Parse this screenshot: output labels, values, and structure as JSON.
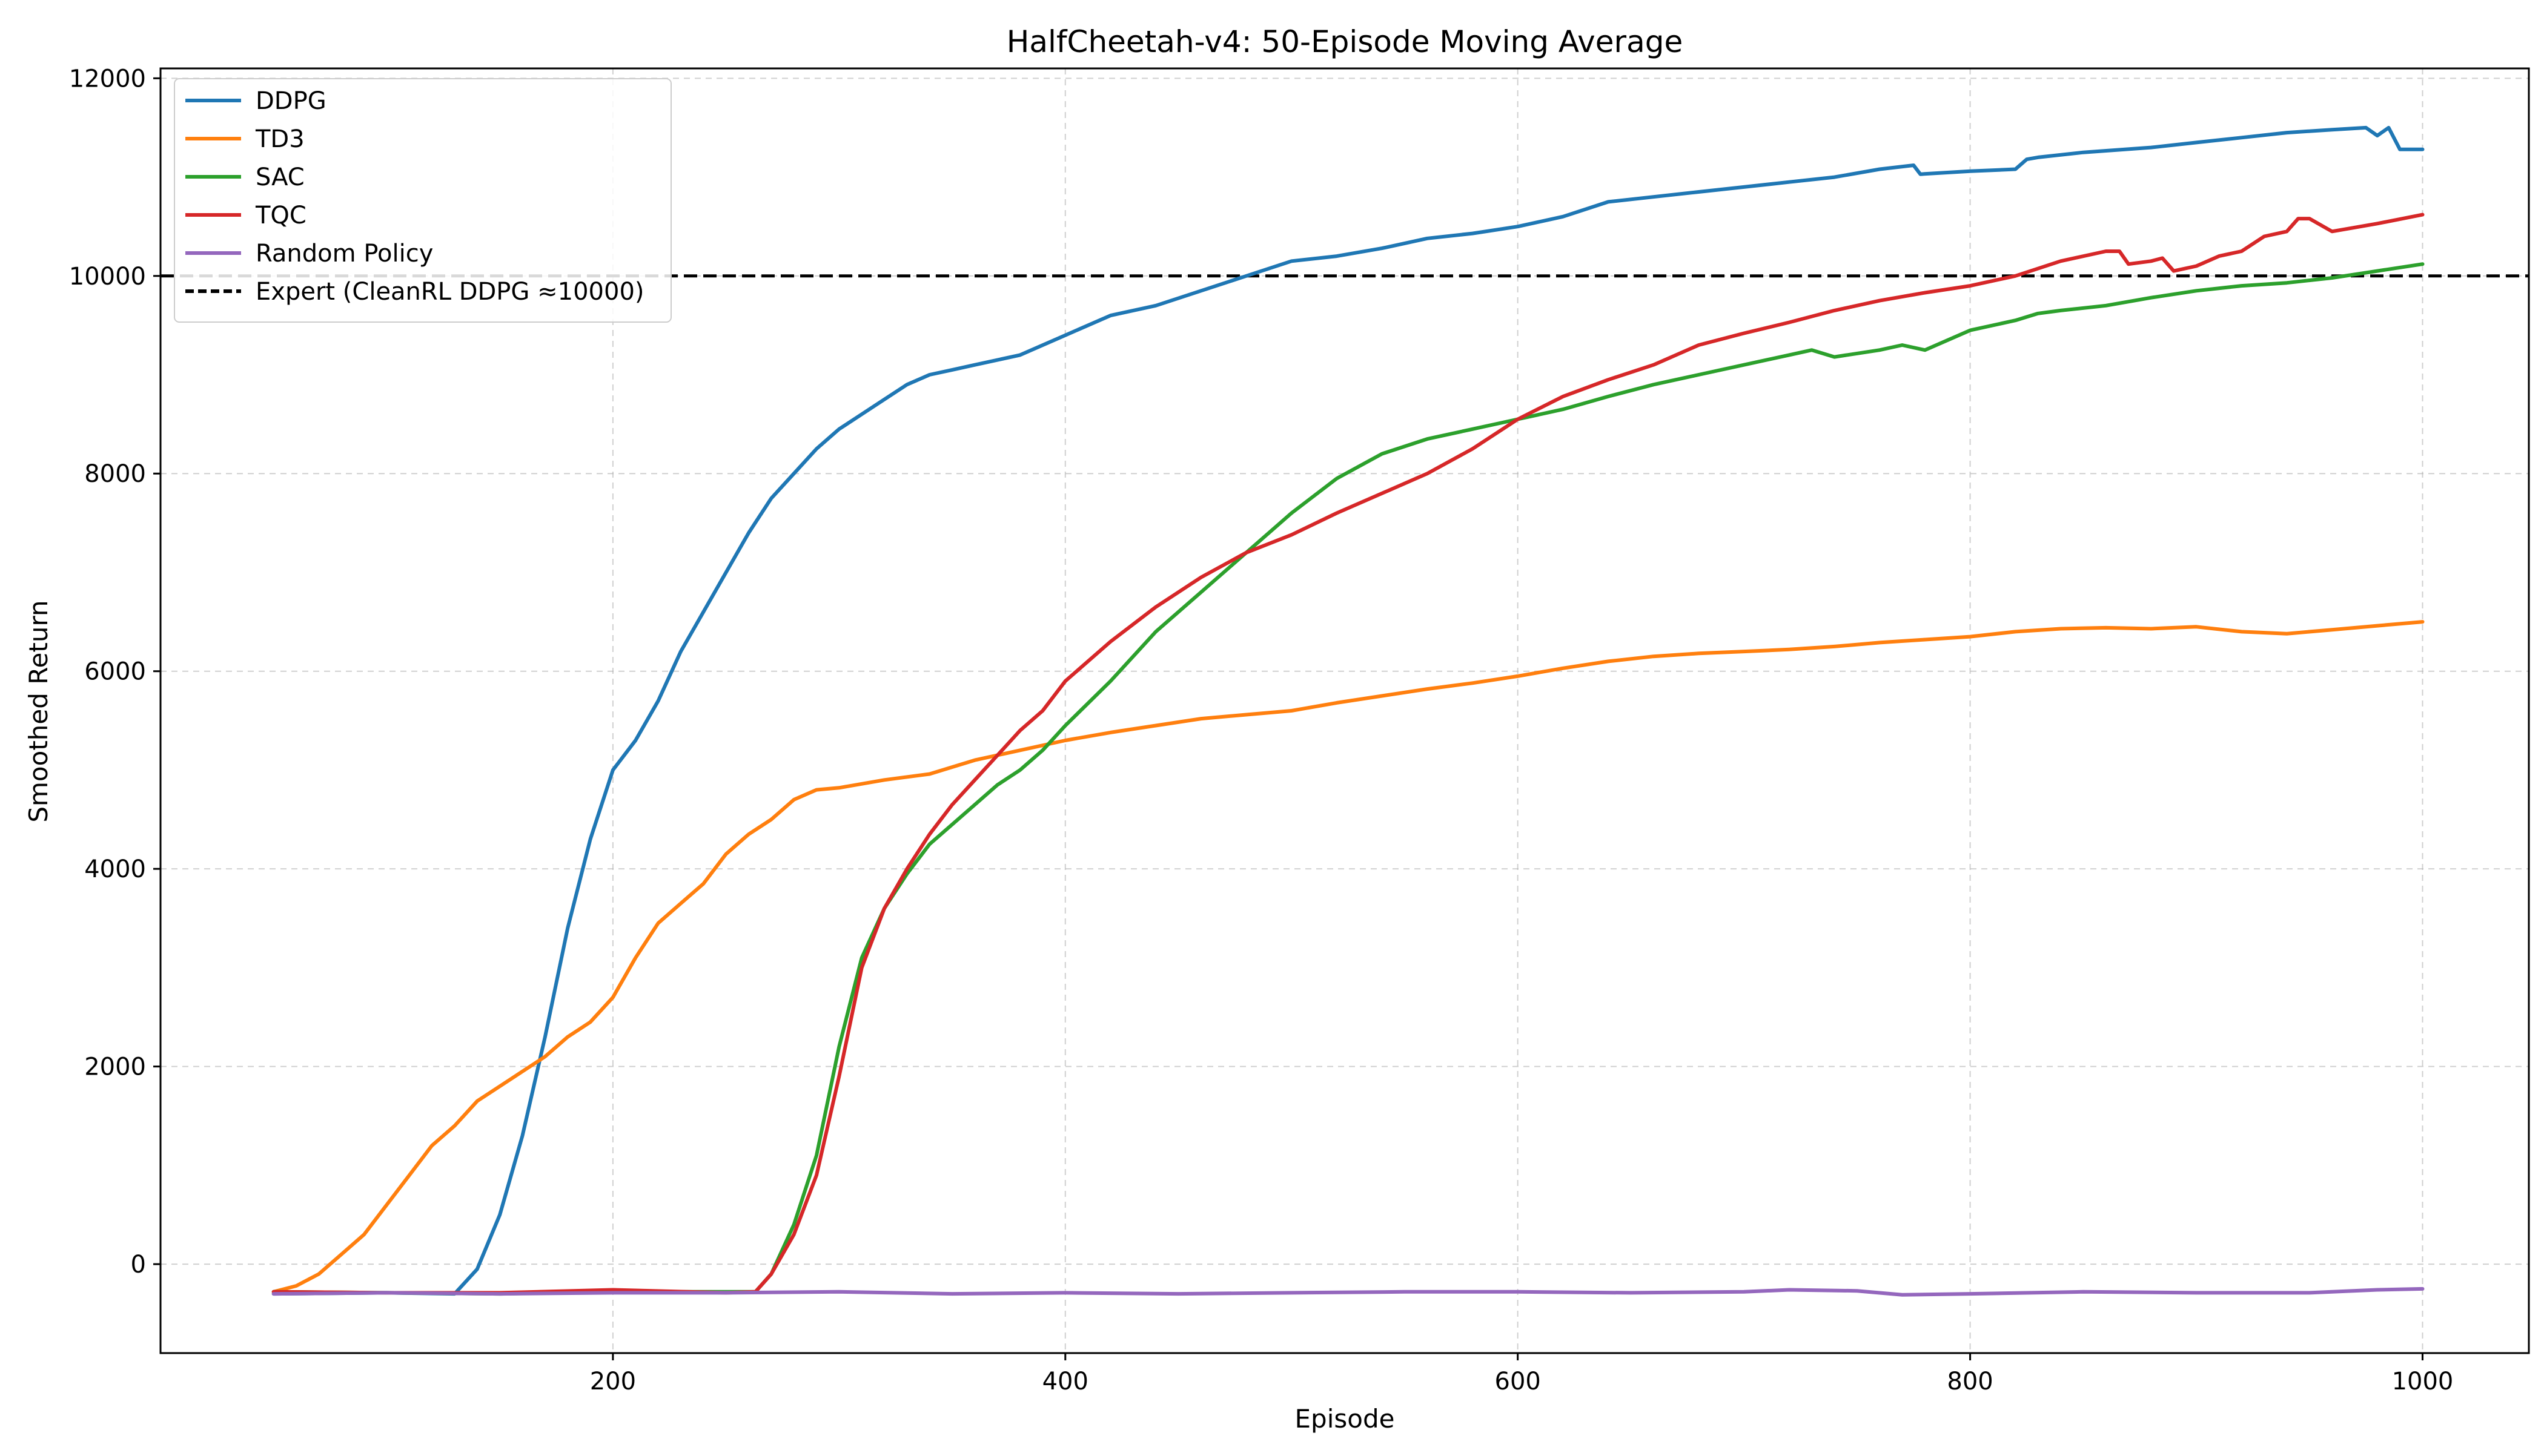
{
  "chart_data": {
    "type": "line",
    "title": "HalfCheetah-v4: 50-Episode Moving Average",
    "xlabel": "Episode",
    "ylabel": "Smoothed Return",
    "xlim": [
      0,
      1047
    ],
    "ylim": [
      -900,
      12100
    ],
    "xticks": [
      200,
      400,
      600,
      800,
      1000
    ],
    "yticks": [
      0,
      2000,
      4000,
      6000,
      8000,
      10000,
      12000
    ],
    "xtick_labels": [
      "200",
      "400",
      "600",
      "800",
      "1000"
    ],
    "ytick_labels": [
      "0",
      "2000",
      "4000",
      "6000",
      "8000",
      "10000",
      "12000"
    ],
    "grid": true,
    "legend_position": "top-left",
    "series": [
      {
        "name": "DDPG",
        "color": "#1f77b4",
        "x": [
          50,
          100,
          130,
          140,
          150,
          160,
          170,
          180,
          190,
          200,
          210,
          220,
          230,
          240,
          250,
          260,
          270,
          280,
          290,
          300,
          310,
          320,
          330,
          340,
          350,
          360,
          380,
          400,
          420,
          440,
          460,
          480,
          500,
          520,
          540,
          560,
          580,
          600,
          620,
          640,
          660,
          680,
          700,
          720,
          740,
          760,
          775,
          778,
          800,
          820,
          825,
          830,
          850,
          880,
          900,
          920,
          940,
          960,
          975,
          980,
          985,
          990,
          1000
        ],
        "y": [
          -300,
          -290,
          -300,
          -50,
          500,
          1300,
          2300,
          3400,
          4300,
          5000,
          5300,
          5700,
          6200,
          6600,
          7000,
          7400,
          7750,
          8000,
          8250,
          8450,
          8600,
          8750,
          8900,
          9000,
          9050,
          9100,
          9200,
          9400,
          9600,
          9700,
          9850,
          10000,
          10150,
          10200,
          10280,
          10380,
          10430,
          10500,
          10600,
          10750,
          10800,
          10850,
          10900,
          10950,
          11000,
          11080,
          11120,
          11030,
          11060,
          11080,
          11180,
          11200,
          11250,
          11300,
          11350,
          11400,
          11450,
          11480,
          11500,
          11420,
          11500,
          11280,
          11280
        ]
      },
      {
        "name": "TD3",
        "color": "#ff7f0e",
        "x": [
          50,
          60,
          70,
          80,
          90,
          100,
          110,
          120,
          130,
          140,
          150,
          160,
          170,
          180,
          190,
          200,
          210,
          220,
          230,
          240,
          250,
          260,
          270,
          280,
          290,
          300,
          320,
          340,
          360,
          380,
          400,
          420,
          440,
          460,
          480,
          500,
          520,
          540,
          560,
          580,
          600,
          620,
          640,
          660,
          680,
          700,
          720,
          740,
          760,
          780,
          800,
          820,
          840,
          860,
          880,
          900,
          920,
          940,
          960,
          980,
          1000
        ],
        "y": [
          -280,
          -220,
          -100,
          100,
          300,
          600,
          900,
          1200,
          1400,
          1650,
          1800,
          1950,
          2100,
          2300,
          2450,
          2700,
          3100,
          3450,
          3650,
          3850,
          4150,
          4350,
          4500,
          4700,
          4800,
          4820,
          4900,
          4960,
          5100,
          5200,
          5300,
          5380,
          5450,
          5520,
          5560,
          5600,
          5680,
          5750,
          5820,
          5880,
          5950,
          6030,
          6100,
          6150,
          6180,
          6200,
          6220,
          6250,
          6290,
          6320,
          6350,
          6400,
          6430,
          6440,
          6430,
          6450,
          6400,
          6380,
          6420,
          6460,
          6500
        ]
      },
      {
        "name": "SAC",
        "color": "#2ca02c",
        "x": [
          50,
          100,
          150,
          200,
          250,
          263,
          270,
          280,
          290,
          300,
          310,
          320,
          330,
          340,
          350,
          360,
          370,
          380,
          390,
          400,
          420,
          440,
          460,
          480,
          500,
          520,
          540,
          560,
          580,
          600,
          620,
          640,
          660,
          680,
          700,
          720,
          730,
          740,
          760,
          770,
          780,
          800,
          820,
          830,
          840,
          860,
          880,
          900,
          920,
          940,
          960,
          980,
          1000
        ],
        "y": [
          -280,
          -290,
          -300,
          -280,
          -280,
          -280,
          -100,
          400,
          1100,
          2200,
          3100,
          3600,
          3950,
          4250,
          4450,
          4650,
          4850,
          5000,
          5200,
          5450,
          5900,
          6400,
          6800,
          7200,
          7600,
          7950,
          8200,
          8350,
          8450,
          8550,
          8650,
          8780,
          8900,
          9000,
          9100,
          9200,
          9250,
          9180,
          9250,
          9300,
          9250,
          9450,
          9550,
          9620,
          9650,
          9700,
          9780,
          9850,
          9900,
          9930,
          9980,
          10050,
          10120
        ]
      },
      {
        "name": "TQC",
        "color": "#d62728",
        "x": [
          50,
          100,
          150,
          200,
          250,
          263,
          270,
          280,
          290,
          300,
          310,
          320,
          330,
          340,
          350,
          360,
          370,
          380,
          390,
          400,
          420,
          440,
          460,
          480,
          500,
          520,
          540,
          560,
          580,
          600,
          620,
          640,
          660,
          680,
          700,
          720,
          740,
          760,
          780,
          800,
          820,
          840,
          860,
          866,
          870,
          880,
          885,
          890,
          900,
          910,
          920,
          930,
          940,
          945,
          950,
          960,
          980,
          1000
        ],
        "y": [
          -280,
          -290,
          -290,
          -260,
          -290,
          -280,
          -100,
          300,
          900,
          1900,
          3000,
          3600,
          4000,
          4350,
          4650,
          4900,
          5150,
          5400,
          5600,
          5900,
          6300,
          6650,
          6950,
          7200,
          7380,
          7600,
          7800,
          8000,
          8250,
          8550,
          8780,
          8950,
          9100,
          9300,
          9420,
          9530,
          9650,
          9750,
          9830,
          9900,
          10000,
          10150,
          10250,
          10250,
          10120,
          10150,
          10180,
          10050,
          10100,
          10200,
          10250,
          10400,
          10450,
          10580,
          10580,
          10450,
          10530,
          10620
        ]
      },
      {
        "name": "Random Policy",
        "color": "#9467bd",
        "x": [
          50,
          100,
          150,
          200,
          250,
          300,
          350,
          400,
          450,
          500,
          550,
          600,
          650,
          700,
          720,
          750,
          770,
          800,
          850,
          900,
          950,
          980,
          1000
        ],
        "y": [
          -300,
          -290,
          -300,
          -290,
          -290,
          -280,
          -300,
          -290,
          -300,
          -290,
          -280,
          -280,
          -290,
          -280,
          -260,
          -270,
          -310,
          -300,
          -280,
          -290,
          -290,
          -260,
          -250
        ]
      }
    ],
    "reference_lines": [
      {
        "name": "Expert (CleanRL DDPG ≈10000)",
        "y": 10000,
        "color": "#000000",
        "style": "dashed"
      }
    ]
  }
}
